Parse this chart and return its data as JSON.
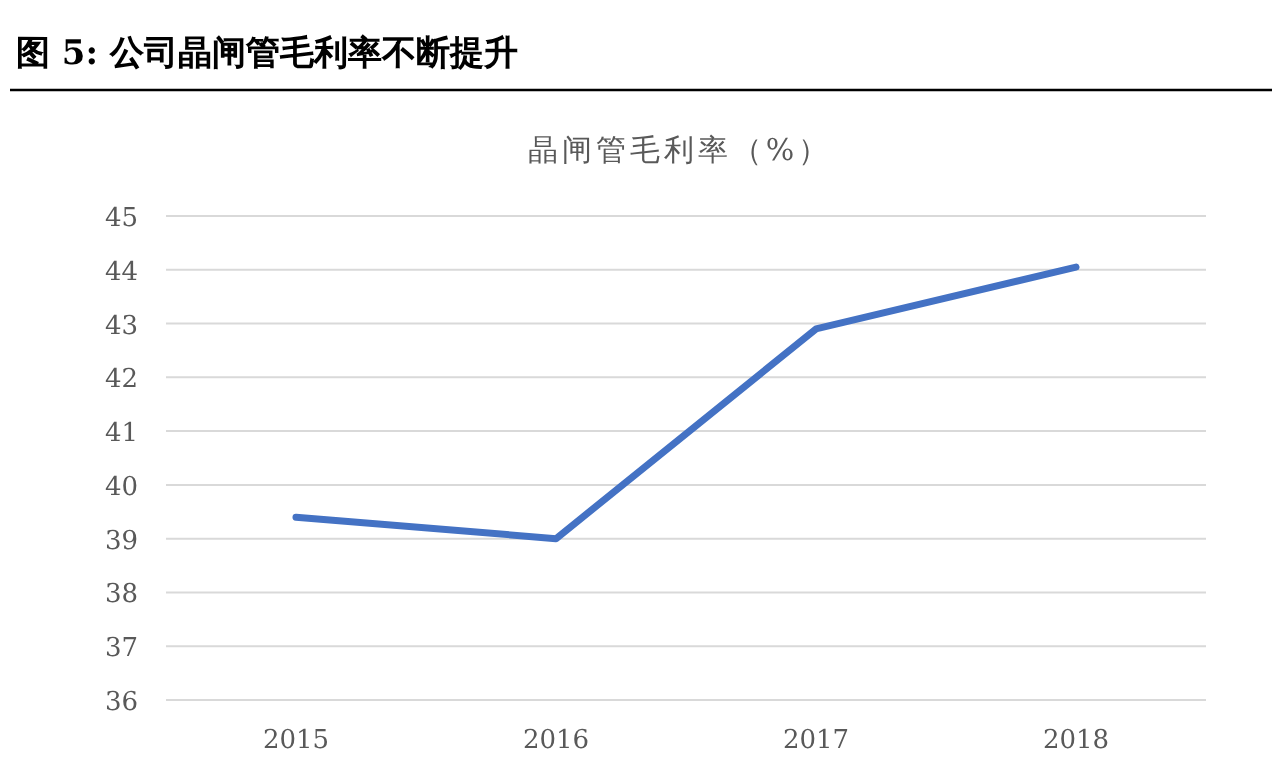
{
  "chart_data": {
    "type": "line",
    "title": "图 5: 公司晶闸管毛利率不断提升",
    "subtitle": "晶闸管毛利率（%）",
    "categories": [
      "2015",
      "2016",
      "2017",
      "2018"
    ],
    "series": [
      {
        "color": "#4472c4",
        "values": [
          39.4,
          39.0,
          42.9,
          44.05
        ]
      }
    ],
    "ylim": [
      36,
      45
    ],
    "yticks": [
      36,
      37,
      38,
      39,
      40,
      41,
      42,
      43,
      44,
      45
    ],
    "grid": "y",
    "marker": "none",
    "line_style": "solid"
  }
}
